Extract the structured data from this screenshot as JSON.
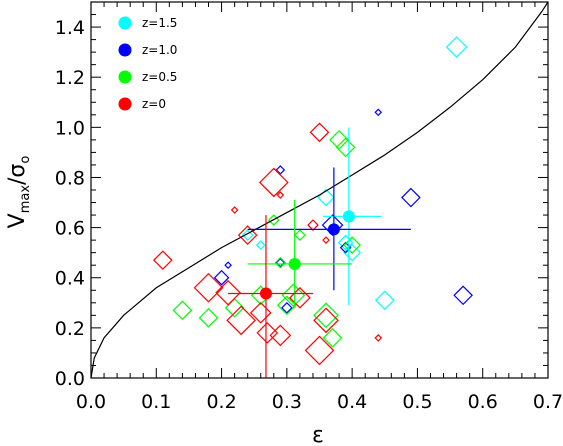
{
  "chart_data": {
    "type": "scatter",
    "title": "",
    "xlabel": "ε",
    "ylabel_main": "V",
    "ylabel_sub": "max",
    "ylabel_slash": "/",
    "ylabel_sigma": "σ",
    "ylabel_sigma_sub": "o",
    "xlim": [
      0.0,
      0.7
    ],
    "ylim": [
      0.0,
      1.5
    ],
    "xticks": [
      0.0,
      0.1,
      0.2,
      0.3,
      0.4,
      0.5,
      0.6,
      0.7
    ],
    "yticks": [
      0.0,
      0.2,
      0.4,
      0.6,
      0.8,
      1.0,
      1.2,
      1.4
    ],
    "xtick_labels": [
      "0.0",
      "0.1",
      "0.2",
      "0.3",
      "0.4",
      "0.5",
      "0.6",
      "0.7"
    ],
    "ytick_labels": [
      "0.0",
      "0.2",
      "0.4",
      "0.6",
      "0.8",
      "1.0",
      "1.2",
      "1.4"
    ],
    "legend_placement": "top-left",
    "legend": [
      {
        "label": "z=1.5",
        "color": "#00ffff"
      },
      {
        "label": "z=1.0",
        "color": "#0000ff"
      },
      {
        "label": "z=0.5",
        "color": "#00ff00"
      },
      {
        "label": "z=0",
        "color": "#ff0000"
      }
    ],
    "curve": [
      [
        0.0,
        0.0
      ],
      [
        0.005,
        0.08
      ],
      [
        0.02,
        0.16
      ],
      [
        0.05,
        0.25
      ],
      [
        0.1,
        0.36
      ],
      [
        0.15,
        0.44
      ],
      [
        0.2,
        0.52
      ],
      [
        0.25,
        0.59
      ],
      [
        0.3,
        0.66
      ],
      [
        0.35,
        0.73
      ],
      [
        0.4,
        0.81
      ],
      [
        0.45,
        0.89
      ],
      [
        0.5,
        0.98
      ],
      [
        0.55,
        1.08
      ],
      [
        0.6,
        1.19
      ],
      [
        0.65,
        1.32
      ],
      [
        0.69,
        1.46
      ],
      [
        0.7,
        1.5
      ]
    ],
    "series": [
      {
        "color": "#00ffff",
        "points": [
          [
            0.56,
            1.32,
            10
          ],
          [
            0.45,
            0.31,
            9
          ],
          [
            0.4,
            0.5,
            8
          ],
          [
            0.39,
            0.54,
            7
          ],
          [
            0.36,
            0.72,
            8
          ],
          [
            0.24,
            0.57,
            5
          ],
          [
            0.26,
            0.53,
            4
          ]
        ],
        "mean": {
          "x": 0.395,
          "y": 0.645,
          "xerr": [
            0.355,
            0.445
          ],
          "yerr": [
            0.29,
            1.0
          ]
        }
      },
      {
        "color": "#0000ff",
        "points": [
          [
            0.49,
            0.72,
            9
          ],
          [
            0.57,
            0.33,
            9
          ],
          [
            0.37,
            0.61,
            10
          ],
          [
            0.29,
            0.46,
            4
          ],
          [
            0.29,
            0.83,
            4
          ],
          [
            0.44,
            1.06,
            3
          ],
          [
            0.3,
            0.28,
            5
          ],
          [
            0.21,
            0.45,
            3
          ],
          [
            0.2,
            0.4,
            7
          ],
          [
            0.39,
            0.52,
            5
          ]
        ],
        "mean": {
          "x": 0.372,
          "y": 0.593,
          "xerr": [
            0.24,
            0.49
          ],
          "yerr": [
            0.35,
            0.84
          ]
        }
      },
      {
        "color": "#00ff00",
        "points": [
          [
            0.39,
            0.92,
            9
          ],
          [
            0.38,
            0.95,
            9
          ],
          [
            0.4,
            0.53,
            8
          ],
          [
            0.31,
            0.33,
            11
          ],
          [
            0.3,
            0.29,
            9
          ],
          [
            0.37,
            0.16,
            9
          ],
          [
            0.36,
            0.25,
            12
          ],
          [
            0.14,
            0.27,
            9
          ],
          [
            0.18,
            0.24,
            9
          ],
          [
            0.22,
            0.28,
            9
          ],
          [
            0.26,
            0.33,
            9
          ],
          [
            0.29,
            0.46,
            5
          ],
          [
            0.32,
            0.57,
            5
          ],
          [
            0.28,
            0.63,
            5
          ]
        ],
        "mean": {
          "x": 0.312,
          "y": 0.455,
          "xerr": [
            0.24,
            0.4
          ],
          "yerr": [
            0.28,
            0.71
          ]
        }
      },
      {
        "color": "#ff0000",
        "points": [
          [
            0.35,
            0.98,
            9
          ],
          [
            0.28,
            0.78,
            14
          ],
          [
            0.24,
            0.57,
            9
          ],
          [
            0.34,
            0.61,
            5
          ],
          [
            0.22,
            0.67,
            3
          ],
          [
            0.29,
            0.73,
            3
          ],
          [
            0.11,
            0.47,
            9
          ],
          [
            0.18,
            0.36,
            14
          ],
          [
            0.21,
            0.34,
            12
          ],
          [
            0.23,
            0.23,
            14
          ],
          [
            0.26,
            0.26,
            10
          ],
          [
            0.29,
            0.17,
            10
          ],
          [
            0.35,
            0.11,
            14
          ],
          [
            0.36,
            0.23,
            12
          ],
          [
            0.32,
            0.32,
            10
          ],
          [
            0.44,
            0.16,
            3
          ],
          [
            0.27,
            0.18,
            10
          ],
          [
            0.36,
            0.55,
            3
          ]
        ],
        "mean": {
          "x": 0.268,
          "y": 0.337,
          "xerr": [
            0.21,
            0.34
          ],
          "yerr": [
            0.0,
            0.65
          ]
        }
      }
    ]
  }
}
